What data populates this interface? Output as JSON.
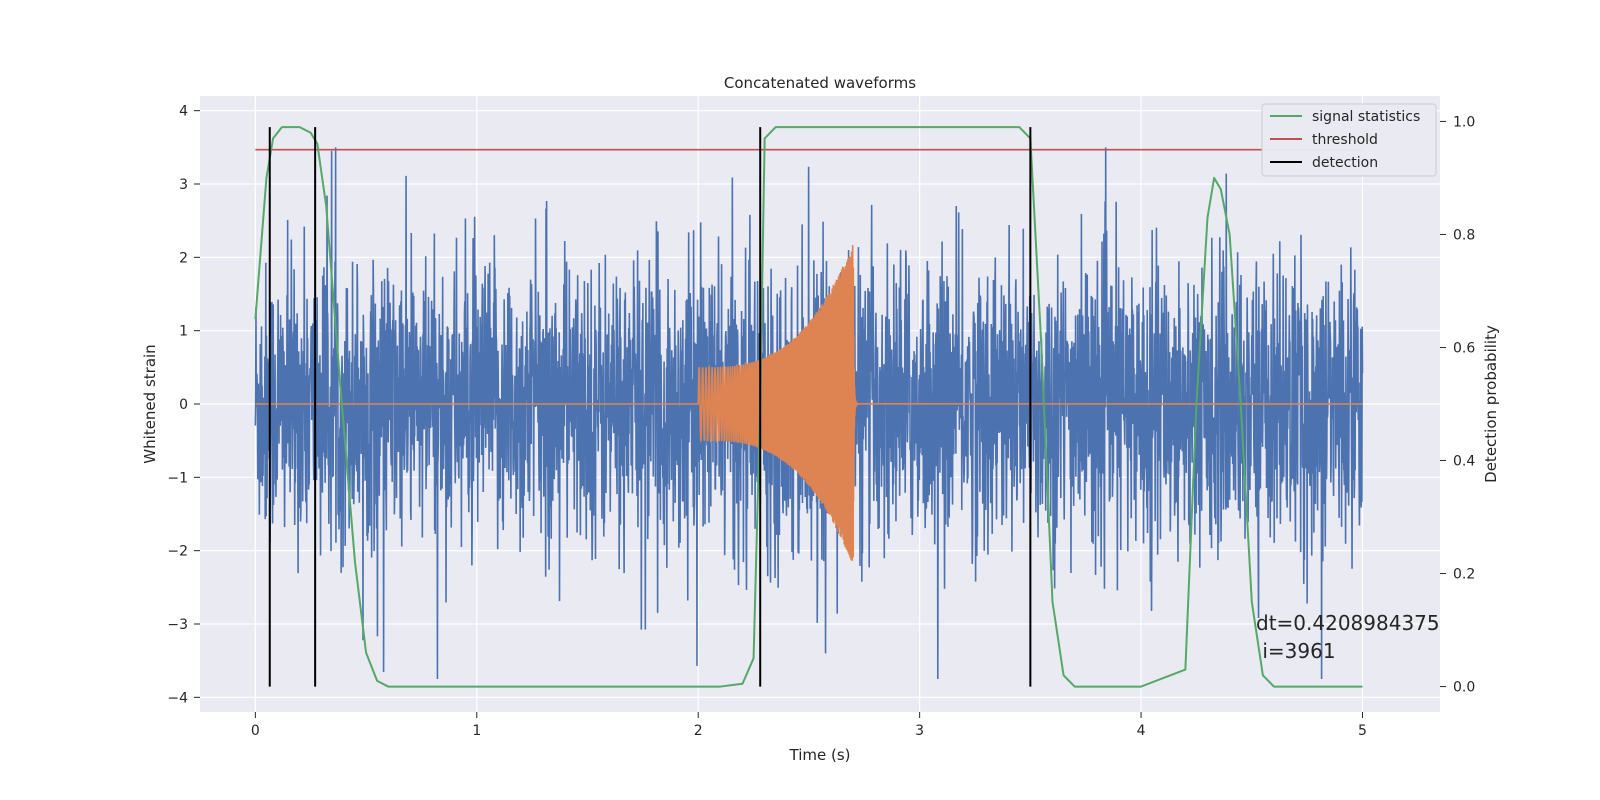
{
  "chart_data": {
    "type": "line",
    "title": "Concatenated waveforms",
    "xlabel": "Time (s)",
    "ylabel": "Whitened strain",
    "ylabel_right": "Detection probability",
    "xlim": [
      -0.25,
      5.35
    ],
    "ylim": [
      -4.2,
      4.2
    ],
    "ylim_right": [
      -0.045,
      1.045
    ],
    "x_ticks": [
      0,
      1,
      2,
      3,
      4,
      5
    ],
    "y_ticks": [
      -4,
      -3,
      -2,
      -1,
      0,
      1,
      2,
      3,
      4
    ],
    "y_ticks_right": [
      0.0,
      0.2,
      0.4,
      0.6,
      0.8,
      1.0
    ],
    "x_tick_labels": [
      "0",
      "1",
      "2",
      "3",
      "4",
      "5"
    ],
    "y_tick_labels": [
      "−4",
      "−3",
      "−2",
      "−1",
      "0",
      "1",
      "2",
      "3",
      "4"
    ],
    "y_tick_labels_right": [
      "0.0",
      "0.2",
      "0.4",
      "0.6",
      "0.8",
      "1.0"
    ],
    "grid": true,
    "legend_position": "top-right",
    "colors": {
      "noise": "#4c72b0",
      "template": "#dd8452",
      "signal_statistics": "#55a868",
      "threshold": "#c44e52",
      "detection": "#000000",
      "plot_background": "#eaeaf2",
      "grid": "#ffffff"
    },
    "series": [
      {
        "name": "signal statistics",
        "axis": "right",
        "x": [
          0.0,
          0.05,
          0.08,
          0.12,
          0.2,
          0.25,
          0.28,
          0.32,
          0.38,
          0.45,
          0.5,
          0.55,
          0.6,
          1.0,
          2.1,
          2.2,
          2.25,
          2.28,
          2.3,
          2.35,
          2.5,
          3.0,
          3.45,
          3.5,
          3.55,
          3.6,
          3.65,
          3.7,
          4.0,
          4.2,
          4.25,
          4.3,
          4.33,
          4.36,
          4.4,
          4.45,
          4.5,
          4.55,
          4.6,
          5.0
        ],
        "y": [
          0.65,
          0.9,
          0.97,
          0.99,
          0.99,
          0.98,
          0.96,
          0.85,
          0.55,
          0.22,
          0.06,
          0.01,
          0.0,
          0.0,
          0.0,
          0.005,
          0.05,
          0.5,
          0.97,
          0.99,
          0.99,
          0.99,
          0.99,
          0.97,
          0.6,
          0.15,
          0.02,
          0.0,
          0.0,
          0.03,
          0.5,
          0.83,
          0.9,
          0.88,
          0.8,
          0.5,
          0.15,
          0.02,
          0.0,
          0.0
        ]
      },
      {
        "name": "threshold",
        "axis": "right",
        "x": [
          0.0,
          5.0
        ],
        "y": [
          0.95,
          0.95
        ]
      },
      {
        "name": "detection",
        "axis": "right",
        "x": [
          0.065,
          0.27,
          2.28,
          3.5
        ],
        "y_range": [
          0.0,
          0.99
        ]
      },
      {
        "axis": "left",
        "x_range": [
          0.0,
          5.0
        ],
        "typical_amplitude": 1.0,
        "peak_max": 3.5,
        "peak_min": -3.75
      },
      {
        "axis": "left",
        "x_range": [
          2.0,
          2.72
        ],
        "amplitude_start": 0.5,
        "amplitude_peak": 2.2,
        "peak_time": 2.7
      }
    ],
    "annotation": {
      "text_line1": "dt=0.4208984375",
      "text_line2": " i=3961"
    }
  },
  "legend": {
    "items": [
      {
        "label": "signal statistics",
        "color": "#55a868"
      },
      {
        "label": "threshold",
        "color": "#c44e52"
      },
      {
        "label": "detection",
        "color": "#000000"
      }
    ]
  }
}
